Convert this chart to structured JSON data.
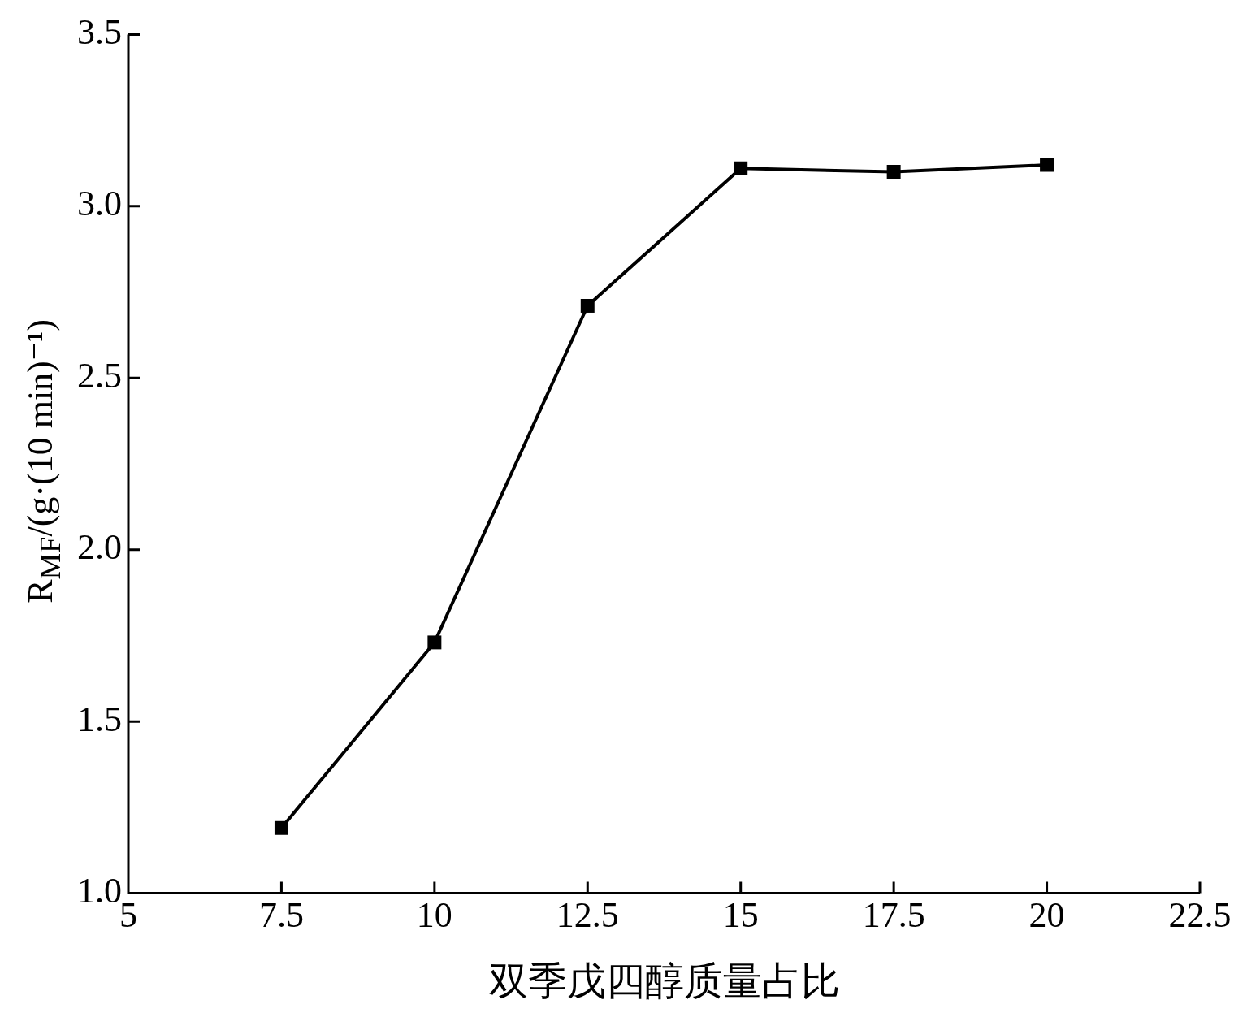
{
  "chart_data": {
    "type": "line",
    "xlabel": "双季戊四醇质量占比",
    "ylabel": "R$_{MF}$/(g·(10 min)⁻¹)",
    "x": [
      7.5,
      10,
      12.5,
      15,
      17.5,
      20
    ],
    "series": [
      {
        "color": "#000000",
        "values": [
          1.19,
          1.73,
          2.71,
          3.11,
          3.1,
          3.12
        ]
      }
    ],
    "xlim": [
      5,
      22.5
    ],
    "xticks": [
      5,
      7.5,
      10,
      12.5,
      15,
      17.5,
      20,
      22.5
    ],
    "ylim": [
      1,
      3.5
    ],
    "yticks": [
      {
        "value": 1,
        "label": "1.0"
      },
      {
        "value": 1.5,
        "label": "1.5"
      },
      {
        "value": 2,
        "label": "2.0"
      },
      {
        "value": 2.5,
        "label": "2.5"
      },
      {
        "value": 3,
        "label": "3.0"
      },
      {
        "value": 3.5,
        "label": "3.5"
      }
    ],
    "grid": false,
    "legend": false,
    "marker": "square",
    "line_style": "solid"
  }
}
